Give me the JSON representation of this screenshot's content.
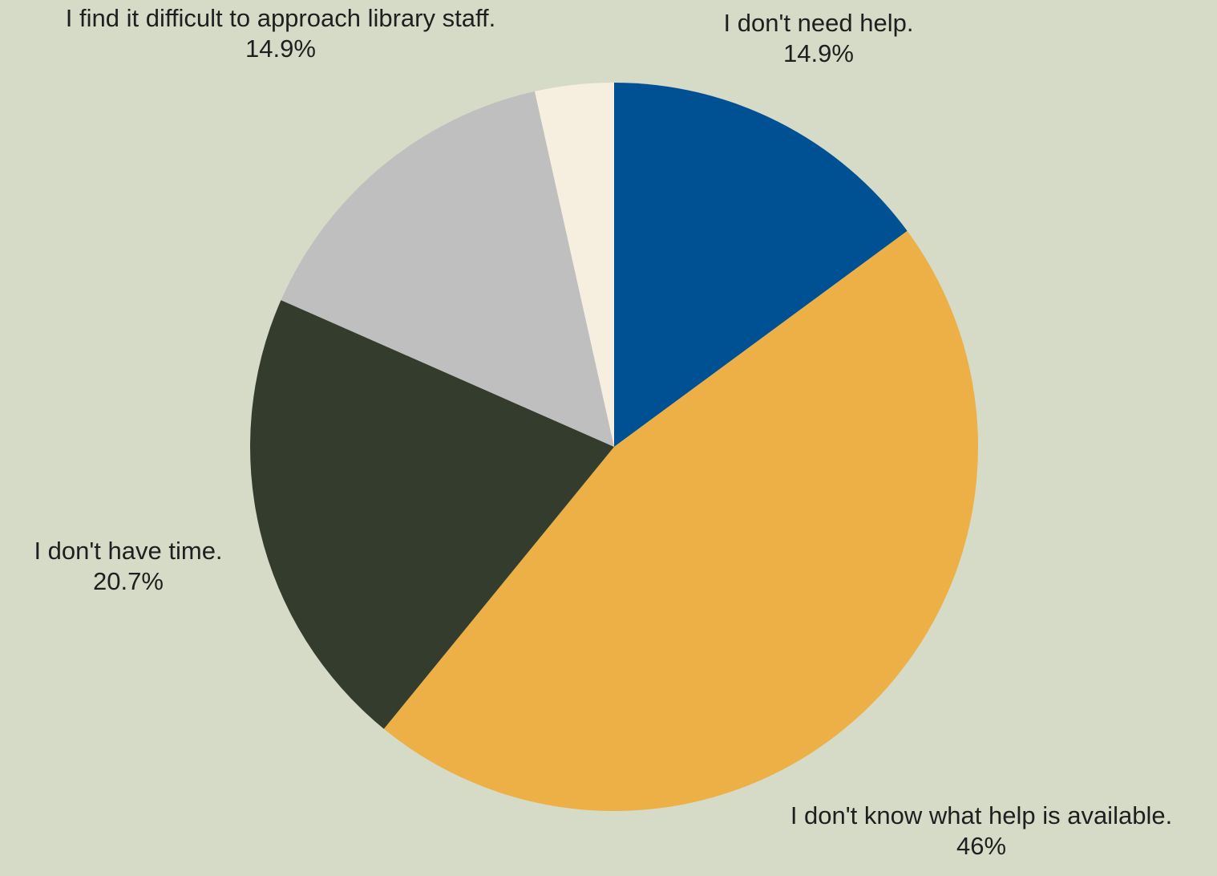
{
  "chart_data": {
    "type": "pie",
    "title": "",
    "start_angle_deg": 0,
    "direction": "clockwise",
    "slices": [
      {
        "label": "I don't need help.",
        "value": 14.9,
        "value_text": "14.9%",
        "color": "#005193",
        "show_label": true
      },
      {
        "label": "I don't know what help is available.",
        "value": 46,
        "value_text": "46%",
        "color": "#ecb046",
        "show_label": true
      },
      {
        "label": "I don't have time.",
        "value": 20.7,
        "value_text": "20.7%",
        "color": "#343d2d",
        "show_label": true
      },
      {
        "label": "I find it difficult to approach library staff.",
        "value": 14.9,
        "value_text": "14.9%",
        "color": "#bfbfbf",
        "show_label": true
      },
      {
        "label": "",
        "value": 3.5,
        "value_text": "",
        "color": "#f6eedf",
        "show_label": false
      }
    ]
  }
}
